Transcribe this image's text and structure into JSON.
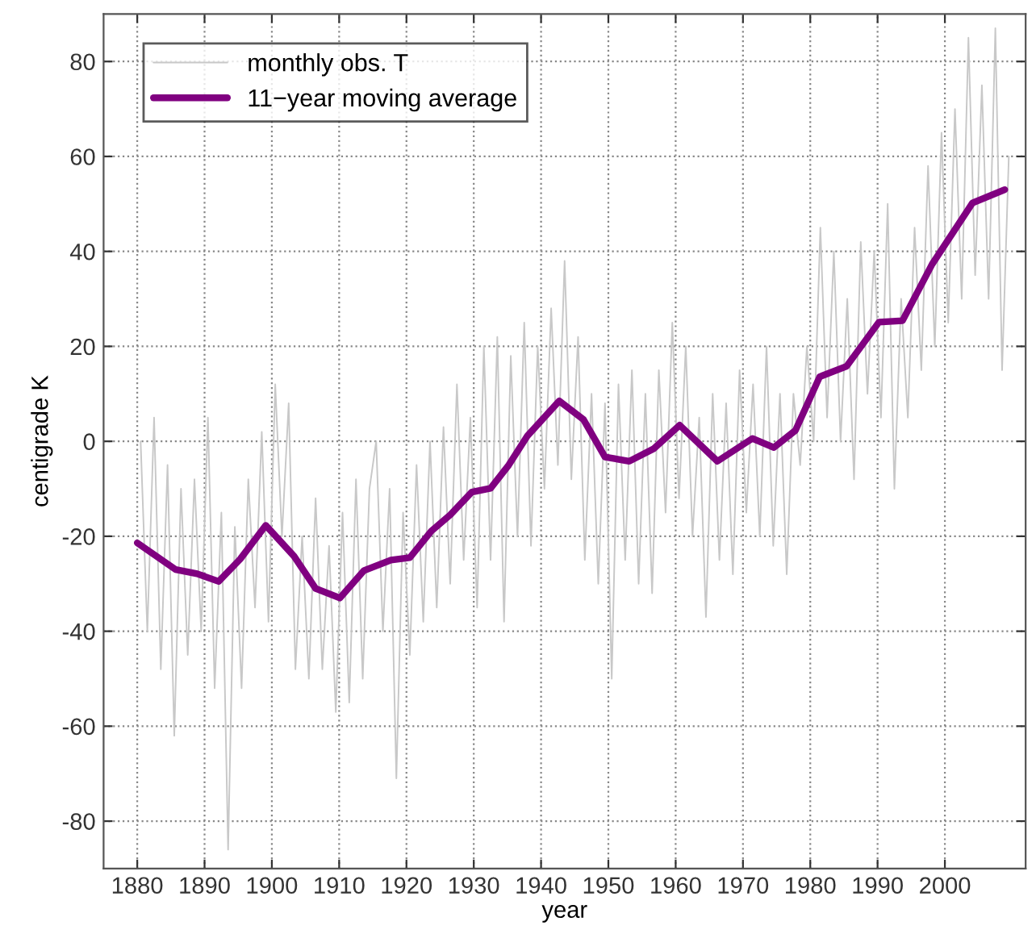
{
  "chart_data": {
    "type": "line",
    "xlabel": "year",
    "ylabel": "centigrade K",
    "xlim": [
      1875,
      2012
    ],
    "ylim": [
      -90,
      90
    ],
    "xticks": [
      1880,
      1890,
      1900,
      1910,
      1920,
      1930,
      1940,
      1950,
      1960,
      1970,
      1980,
      1990,
      2000
    ],
    "yticks": [
      -80,
      -60,
      -40,
      -20,
      0,
      20,
      40,
      60,
      80
    ],
    "grid": true,
    "legend": "top left",
    "marker": "none",
    "line_style": "solid",
    "series": [
      {
        "name": "monthly obs. T",
        "color": "#c8c8c8",
        "x": [
          1880.5,
          1881.5,
          1882.5,
          1883.5,
          1884.5,
          1885.5,
          1886.5,
          1887.5,
          1888.5,
          1889.5,
          1890.5,
          1891.5,
          1892.5,
          1893.5,
          1894.5,
          1895.5,
          1896.5,
          1897.5,
          1898.5,
          1899.5,
          1900.5,
          1901.5,
          1902.5,
          1903.5,
          1904.5,
          1905.5,
          1906.5,
          1907.5,
          1908.5,
          1909.5,
          1910.5,
          1911.5,
          1912.5,
          1913.5,
          1914.5,
          1915.5,
          1916.5,
          1917.5,
          1918.5,
          1919.5,
          1920.5,
          1921.5,
          1922.5,
          1923.5,
          1924.5,
          1925.5,
          1926.5,
          1927.5,
          1928.5,
          1929.5,
          1930.5,
          1931.5,
          1932.5,
          1933.5,
          1934.5,
          1935.5,
          1936.5,
          1937.5,
          1938.5,
          1939.5,
          1940.5,
          1941.5,
          1942.5,
          1943.5,
          1944.5,
          1945.5,
          1946.5,
          1947.5,
          1948.5,
          1949.5,
          1950.5,
          1951.5,
          1952.5,
          1953.5,
          1954.5,
          1955.5,
          1956.5,
          1957.5,
          1958.5,
          1959.5,
          1960.5,
          1961.5,
          1962.5,
          1963.5,
          1964.5,
          1965.5,
          1966.5,
          1967.5,
          1968.5,
          1969.5,
          1970.5,
          1971.5,
          1972.5,
          1973.5,
          1974.5,
          1975.5,
          1976.5,
          1977.5,
          1978.5,
          1979.5,
          1980.5,
          1981.5,
          1982.5,
          1983.5,
          1984.5,
          1985.5,
          1986.5,
          1987.5,
          1988.5,
          1989.5,
          1990.5,
          1991.5,
          1992.5,
          1993.5,
          1994.5,
          1995.5,
          1996.5,
          1997.5,
          1998.5,
          1999.5,
          2000.5,
          2001.5,
          2002.5,
          2003.5,
          2004.5,
          2005.5,
          2006.5,
          2007.5,
          2008.5,
          2009.5
        ],
        "values": [
          0,
          -40,
          5,
          -48,
          -5,
          -62,
          -10,
          -45,
          -8,
          -40,
          5,
          -52,
          -15,
          -86,
          -18,
          -52,
          -8,
          -35,
          2,
          -38,
          12,
          -20,
          8,
          -48,
          -20,
          -50,
          -12,
          -48,
          -22,
          -57,
          -15,
          -55,
          -8,
          -50,
          -10,
          0,
          -40,
          -10,
          -71,
          -15,
          -45,
          -5,
          -38,
          0,
          -35,
          3,
          -30,
          12,
          -25,
          5,
          -35,
          20,
          -25,
          22,
          -38,
          18,
          -20,
          25,
          -22,
          20,
          -10,
          28,
          -5,
          38,
          -8,
          22,
          -25,
          10,
          -30,
          8,
          -50,
          12,
          -25,
          15,
          -30,
          10,
          -32,
          15,
          -15,
          25,
          -12,
          20,
          -20,
          5,
          -37,
          10,
          -25,
          8,
          -28,
          15,
          -15,
          12,
          -20,
          20,
          -22,
          10,
          -28,
          10,
          -5,
          20,
          0,
          45,
          5,
          40,
          0,
          30,
          -8,
          42,
          10,
          40,
          5,
          50,
          -10,
          30,
          5,
          45,
          15,
          58,
          20,
          65,
          25,
          70,
          30,
          85,
          35,
          75,
          30,
          87,
          15,
          60
        ]
      },
      {
        "name": "11−year moving average",
        "color": "#800080",
        "x": [
          1880,
          1885.7,
          1888.9,
          1892.1,
          1895.3,
          1899.1,
          1903.3,
          1906.5,
          1910.1,
          1913.7,
          1917.7,
          1920.5,
          1923.7,
          1926.5,
          1929.7,
          1932.5,
          1935.2,
          1938.0,
          1942.7,
          1946.3,
          1949.5,
          1953.1,
          1956.7,
          1960.6,
          1966.2,
          1971.4,
          1974.6,
          1977.8,
          1981.4,
          1985.4,
          1990.2,
          1993.7,
          1998.1,
          2004.1,
          2008.9
        ],
        "values": [
          -21.4,
          -27,
          -27.9,
          -29.5,
          -24.8,
          -17.7,
          -24.2,
          -31,
          -33,
          -27.2,
          -25,
          -24.5,
          -18.9,
          -15.5,
          -10.7,
          -9.9,
          -5,
          1.2,
          8.5,
          4.6,
          -3.3,
          -4.2,
          -1.6,
          3.4,
          -4.2,
          0.6,
          -1.3,
          2.3,
          13.6,
          15.8,
          25.1,
          25.4,
          37.3,
          50.2,
          53.0
        ]
      }
    ]
  }
}
